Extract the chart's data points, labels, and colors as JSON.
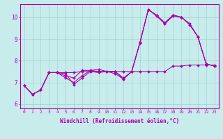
{
  "title": "",
  "xlabel": "Windchill (Refroidissement éolien,°C)",
  "ylabel": "",
  "bg_color": "#c8ecec",
  "grid_color": "#a0d0d0",
  "line_color": "#aa00aa",
  "xlim": [
    -0.5,
    23.5
  ],
  "ylim": [
    5.8,
    10.6
  ],
  "xtick_labels": [
    "0",
    "1",
    "2",
    "3",
    "4",
    "5",
    "6",
    "7",
    "8",
    "9",
    "10",
    "11",
    "12",
    "13",
    "14",
    "15",
    "16",
    "17",
    "18",
    "19",
    "20",
    "21",
    "22",
    "23"
  ],
  "ytick_labels": [
    "6",
    "7",
    "8",
    "9",
    "10"
  ],
  "series": [
    [
      6.85,
      6.45,
      6.65,
      7.45,
      7.45,
      7.2,
      7.0,
      7.3,
      7.55,
      7.6,
      7.5,
      7.4,
      7.15,
      7.5,
      8.85,
      10.35,
      10.1,
      9.7,
      10.1,
      10.0,
      9.7,
      9.1,
      7.85,
      7.75
    ],
    [
      6.85,
      6.45,
      6.65,
      7.45,
      7.45,
      7.3,
      7.2,
      7.55,
      7.55,
      7.5,
      7.5,
      7.5,
      7.15,
      7.5,
      8.85,
      10.35,
      10.1,
      9.75,
      10.1,
      10.0,
      9.7,
      9.1,
      7.85,
      7.75
    ],
    [
      6.85,
      6.45,
      6.65,
      7.45,
      7.45,
      7.4,
      6.9,
      7.2,
      7.5,
      7.45,
      7.5,
      7.5,
      7.2,
      7.5,
      8.8,
      10.35,
      10.05,
      9.7,
      10.05,
      10.0,
      9.65,
      9.1,
      7.85,
      7.75
    ],
    [
      6.85,
      6.45,
      6.65,
      7.45,
      7.45,
      7.45,
      7.45,
      7.5,
      7.5,
      7.5,
      7.5,
      7.5,
      7.5,
      7.5,
      7.5,
      7.5,
      7.5,
      7.5,
      7.75,
      7.75,
      7.8,
      7.8,
      7.8,
      7.8
    ]
  ]
}
